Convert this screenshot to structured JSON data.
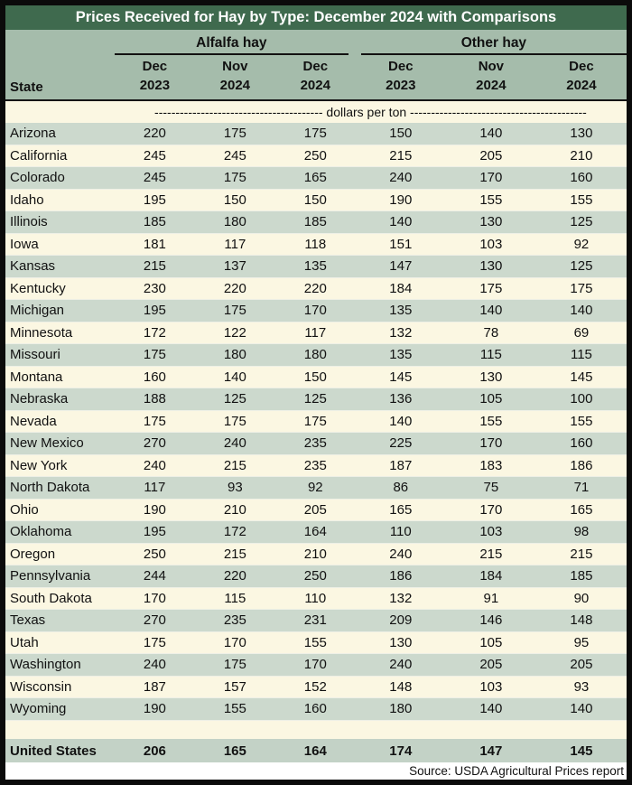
{
  "header": {
    "title": "Prices Received for Hay by Type: December 2024 with Comparisons"
  },
  "table": {
    "state_header": "State",
    "groups": [
      {
        "label": "Alfalfa hay"
      },
      {
        "label": "Other hay"
      }
    ],
    "col_headers": [
      {
        "line1": "Dec",
        "line2": "2023"
      },
      {
        "line1": "Nov",
        "line2": "2024"
      },
      {
        "line1": "Dec",
        "line2": "2024"
      },
      {
        "line1": "Dec",
        "line2": "2023"
      },
      {
        "line1": "Nov",
        "line2": "2024"
      },
      {
        "line1": "Dec",
        "line2": "2024"
      }
    ],
    "unit_row": "---------------------------------------- dollars per ton ------------------------------------------",
    "source": "Source: USDA Agricultural Prices report"
  },
  "colors": {
    "title_bg": "#3f6a4e",
    "title_text": "#ffffff",
    "header_bg": "#a5bcab",
    "row_sage": "#ccd9cd",
    "row_cream": "#fbf7e2",
    "total_bg": "#c3d2c6",
    "source_bg": "#ffffff",
    "outer_border": "#0b0b0b"
  },
  "chart_data": {
    "type": "table",
    "title": "Prices Received for Hay by Type: December 2024 with Comparisons",
    "unit": "dollars per ton",
    "column_groups": [
      "Alfalfa hay",
      "Other hay"
    ],
    "columns": [
      "State",
      "Alfalfa hay Dec 2023",
      "Alfalfa hay Nov 2024",
      "Alfalfa hay Dec 2024",
      "Other hay Dec 2023",
      "Other hay Nov 2024",
      "Other hay Dec 2024"
    ],
    "rows": [
      [
        "Arizona",
        220,
        175,
        175,
        150,
        140,
        130
      ],
      [
        "California",
        245,
        245,
        250,
        215,
        205,
        210
      ],
      [
        "Colorado",
        245,
        175,
        165,
        240,
        170,
        160
      ],
      [
        "Idaho",
        195,
        150,
        150,
        190,
        155,
        155
      ],
      [
        "Illinois",
        185,
        180,
        185,
        140,
        130,
        125
      ],
      [
        "Iowa",
        181,
        117,
        118,
        151,
        103,
        92
      ],
      [
        "Kansas",
        215,
        137,
        135,
        147,
        130,
        125
      ],
      [
        "Kentucky",
        230,
        220,
        220,
        184,
        175,
        175
      ],
      [
        "Michigan",
        195,
        175,
        170,
        135,
        140,
        140
      ],
      [
        "Minnesota",
        172,
        122,
        117,
        132,
        78,
        69
      ],
      [
        "Missouri",
        175,
        180,
        180,
        135,
        115,
        115
      ],
      [
        "Montana",
        160,
        140,
        150,
        145,
        130,
        145
      ],
      [
        "Nebraska",
        188,
        125,
        125,
        136,
        105,
        100
      ],
      [
        "Nevada",
        175,
        175,
        175,
        140,
        155,
        155
      ],
      [
        "New Mexico",
        270,
        240,
        235,
        225,
        170,
        160
      ],
      [
        "New York",
        240,
        215,
        235,
        187,
        183,
        186
      ],
      [
        "North Dakota",
        117,
        93,
        92,
        86,
        75,
        71
      ],
      [
        "Ohio",
        190,
        210,
        205,
        165,
        170,
        165
      ],
      [
        "Oklahoma",
        195,
        172,
        164,
        110,
        103,
        98
      ],
      [
        "Oregon",
        250,
        215,
        210,
        240,
        215,
        215
      ],
      [
        "Pennsylvania",
        244,
        220,
        250,
        186,
        184,
        185
      ],
      [
        "South Dakota",
        170,
        115,
        110,
        132,
        91,
        90
      ],
      [
        "Texas",
        270,
        235,
        231,
        209,
        146,
        148
      ],
      [
        "Utah",
        175,
        170,
        155,
        130,
        105,
        95
      ],
      [
        "Washington",
        240,
        175,
        170,
        240,
        205,
        205
      ],
      [
        "Wisconsin",
        187,
        157,
        152,
        148,
        103,
        93
      ],
      [
        "Wyoming",
        190,
        155,
        160,
        180,
        140,
        140
      ]
    ],
    "total_row": [
      "United States",
      206,
      165,
      164,
      174,
      147,
      145
    ],
    "source": "Source: USDA Agricultural Prices report"
  }
}
